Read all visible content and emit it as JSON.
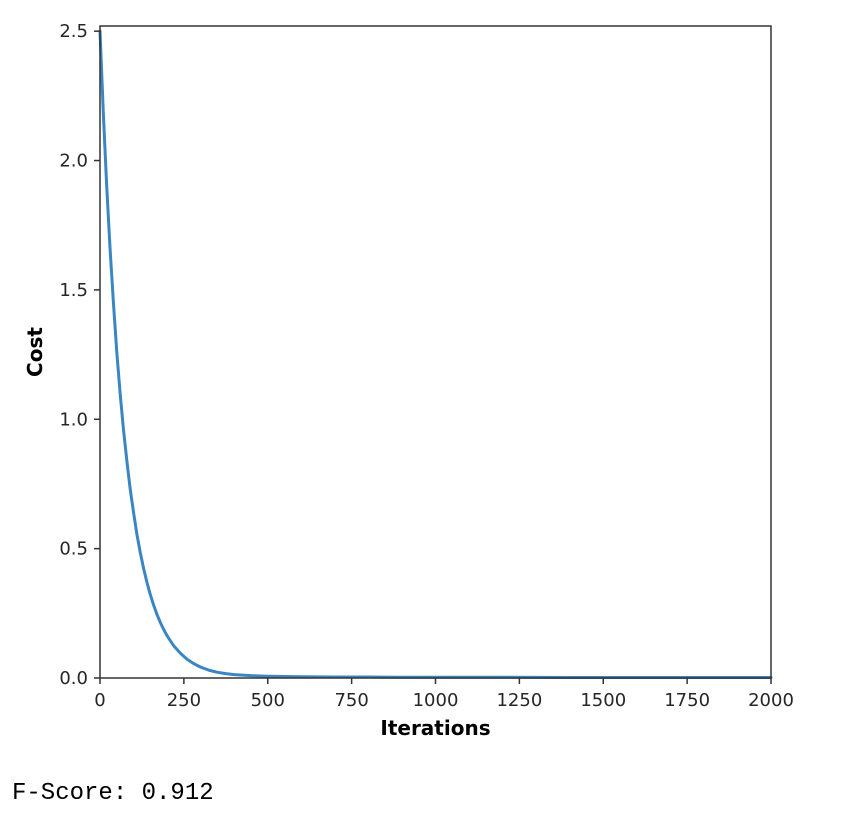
{
  "chart_data": {
    "type": "line",
    "xlabel": "Iterations",
    "ylabel": "Cost",
    "xlim": [
      0,
      2000
    ],
    "ylim": [
      0,
      2.52
    ],
    "xticks": [
      0,
      250,
      500,
      750,
      1000,
      1250,
      1500,
      1750,
      2000
    ],
    "yticks": [
      0.0,
      0.5,
      1.0,
      1.5,
      2.0,
      2.5
    ],
    "xtick_labels": [
      "0",
      "250",
      "500",
      "750",
      "1000",
      "1250",
      "1500",
      "1750",
      "2000"
    ],
    "ytick_labels": [
      "0.0",
      "0.5",
      "1.0",
      "1.5",
      "2.0",
      "2.5"
    ],
    "grid": false,
    "series": [
      {
        "color": "#3a86c2",
        "x": [
          0,
          10,
          20,
          30,
          40,
          50,
          60,
          70,
          80,
          90,
          100,
          110,
          120,
          130,
          140,
          150,
          160,
          170,
          180,
          190,
          200,
          220,
          240,
          260,
          280,
          300,
          325,
          350,
          375,
          400,
          450,
          500,
          550,
          600,
          700,
          800,
          900,
          1000,
          1200,
          1400,
          1600,
          1800,
          2000
        ],
        "y": [
          2.5,
          2.18,
          1.9,
          1.66,
          1.45,
          1.26,
          1.1,
          0.96,
          0.84,
          0.73,
          0.64,
          0.555,
          0.485,
          0.423,
          0.369,
          0.322,
          0.281,
          0.245,
          0.214,
          0.187,
          0.163,
          0.124,
          0.095,
          0.072,
          0.055,
          0.042,
          0.03,
          0.022,
          0.017,
          0.013,
          0.009,
          0.007,
          0.006,
          0.005,
          0.004,
          0.004,
          0.003,
          0.003,
          0.003,
          0.002,
          0.002,
          0.002,
          0.002
        ]
      }
    ]
  },
  "output": {
    "fscore_text": "F-Score: 0.912"
  }
}
